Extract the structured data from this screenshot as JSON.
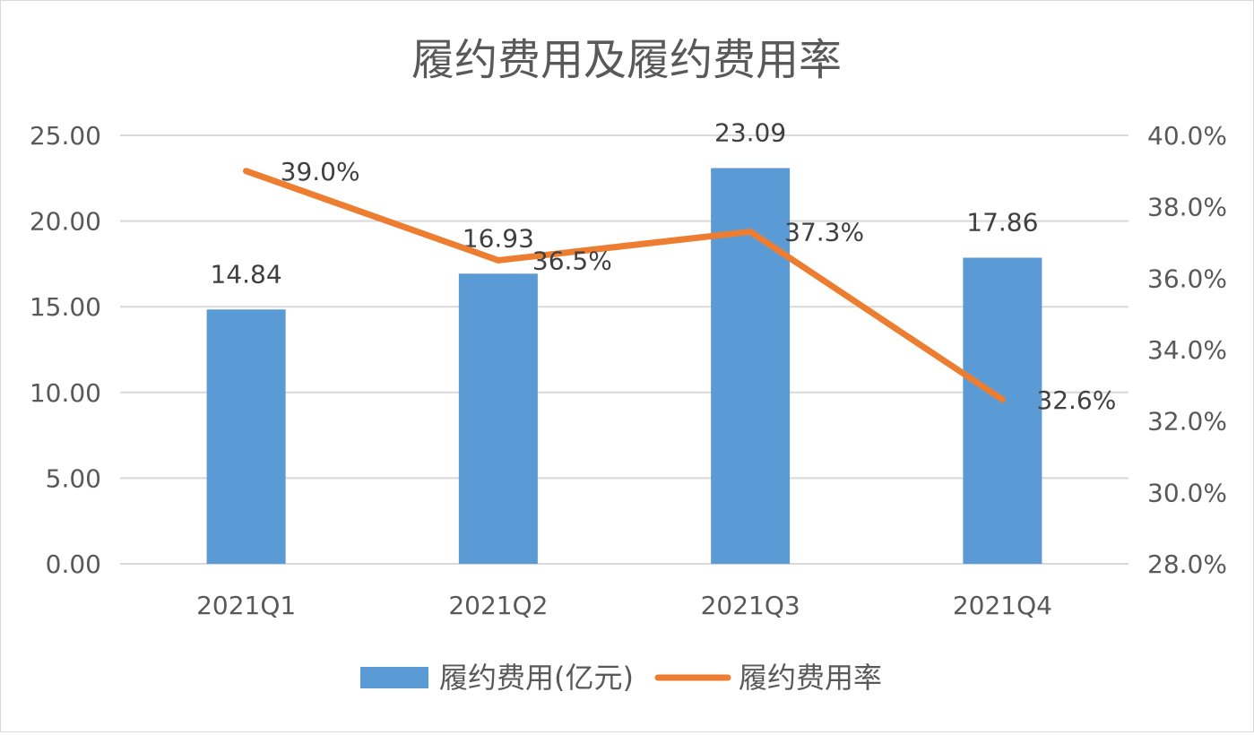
{
  "chart_data": {
    "type": "bar",
    "title": "履约费用及履约费用率",
    "categories": [
      "2021Q1",
      "2021Q2",
      "2021Q3",
      "2021Q4"
    ],
    "series": [
      {
        "name": "履约费用(亿元)",
        "type": "bar",
        "axis": "left",
        "color": "#5b9bd5",
        "values": [
          14.84,
          16.93,
          23.09,
          17.86
        ],
        "labels": [
          "14.84",
          "16.93",
          "23.09",
          "17.86"
        ]
      },
      {
        "name": "履约费用率",
        "type": "line",
        "axis": "right",
        "color": "#ed7d31",
        "values": [
          39.0,
          36.5,
          37.3,
          32.6
        ],
        "labels": [
          "39.0%",
          "36.5%",
          "37.3%",
          "32.6%"
        ]
      }
    ],
    "y_left": {
      "range": [
        0,
        25
      ],
      "ticks": [
        0,
        5,
        10,
        15,
        20,
        25
      ],
      "tick_labels": [
        "0.00",
        "5.00",
        "10.00",
        "15.00",
        "20.00",
        "25.00"
      ]
    },
    "y_right": {
      "range": [
        28,
        40
      ],
      "ticks": [
        28,
        30,
        32,
        34,
        36,
        38,
        40
      ],
      "tick_labels": [
        "28.0%",
        "30.0%",
        "32.0%",
        "34.0%",
        "36.0%",
        "38.0%",
        "40.0%"
      ]
    },
    "grid": true,
    "legend": "bottom"
  }
}
